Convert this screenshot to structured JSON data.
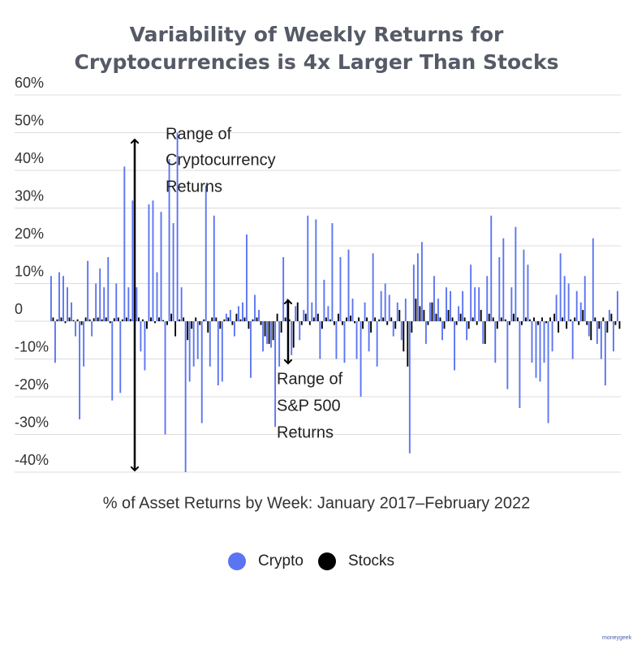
{
  "chart_data": {
    "type": "bar",
    "title": "Variability of Weekly Returns for Cryptocurrencies is 4x Larger Than Stocks",
    "x_label": "% of Asset Returns by Week: January 2017–February 2022",
    "annotations": [
      [
        "Range of",
        "Cryptocurrency",
        "Returns"
      ],
      [
        "Range of",
        "S&P 500",
        "Returns"
      ]
    ],
    "watermark": "moneygeek",
    "ylim": [
      -40,
      60
    ],
    "yticks": [
      {
        "value": -40,
        "label": "-40%"
      },
      {
        "value": -30,
        "label": "-30%"
      },
      {
        "value": -20,
        "label": "-20%"
      },
      {
        "value": -10,
        "label": "-10%"
      },
      0,
      {
        "value": 10,
        "label": "10%"
      },
      {
        "value": 20,
        "label": "20%"
      },
      {
        "value": 30,
        "label": "30%"
      },
      {
        "value": 40,
        "label": "40%"
      },
      {
        "value": 50,
        "label": "50%"
      },
      {
        "value": 60,
        "label": "60%"
      }
    ],
    "grid": true,
    "categories": [
      null,
      null,
      null,
      null,
      null,
      null,
      null,
      null,
      null,
      null,
      null,
      null,
      null,
      null,
      null,
      null,
      null,
      null,
      null,
      null,
      null,
      null,
      null,
      null,
      null,
      null,
      null,
      null,
      null,
      null,
      null,
      null,
      null,
      null,
      null,
      null,
      null,
      null,
      null,
      null,
      null,
      null,
      null,
      null,
      null,
      null,
      null,
      null,
      null,
      null,
      null,
      null,
      null,
      null,
      null,
      null,
      null,
      null,
      null,
      null,
      null,
      null,
      null,
      null,
      null,
      null,
      null,
      null,
      null,
      null,
      null,
      null,
      null,
      null,
      null,
      null,
      null,
      null,
      null,
      null,
      null,
      null,
      null,
      null,
      null,
      null,
      null,
      null,
      null,
      null,
      null,
      null,
      null,
      null,
      null,
      null,
      null,
      null,
      null,
      null,
      null,
      null,
      null,
      null,
      null,
      null,
      null,
      null,
      null,
      null,
      null,
      null,
      null,
      null,
      null,
      null,
      null,
      null,
      null,
      null,
      null,
      null,
      null,
      null,
      null,
      null,
      null,
      null,
      null,
      null,
      null,
      null,
      null,
      null,
      null,
      null,
      null,
      null,
      null,
      null
    ],
    "series": [
      {
        "name": "Crypto",
        "color": "#5b74f2",
        "values": [
          12,
          -11,
          13,
          12,
          9,
          5,
          -4,
          -26,
          -12,
          16,
          -4,
          10,
          14,
          9,
          17,
          -21,
          10,
          -19,
          41,
          9,
          32,
          9,
          -8,
          -13,
          31,
          32,
          13,
          29,
          -30,
          43,
          26,
          50,
          9,
          -40,
          -16,
          -12,
          -10,
          -27,
          36,
          -12,
          28,
          -17,
          -16,
          2,
          3,
          -4,
          4,
          5,
          23,
          -15,
          7,
          3,
          -8,
          -6,
          -7,
          -28,
          -12,
          17,
          6,
          -9,
          4,
          -5,
          3,
          28,
          5,
          27,
          -10,
          11,
          4,
          26,
          -10,
          17,
          -11,
          19,
          6,
          -10,
          -20,
          5,
          -8,
          18,
          -12,
          8,
          10,
          7,
          -4,
          5,
          -5,
          6,
          -35,
          15,
          18,
          21,
          -6,
          5,
          12,
          6,
          -5,
          9,
          8,
          -13,
          4,
          8,
          -5,
          15,
          9,
          9,
          -6,
          12,
          28,
          -11,
          17,
          22,
          -18,
          9,
          25,
          -23,
          19,
          15,
          -11,
          -15,
          -16,
          -11,
          -27,
          -8,
          7,
          18,
          12,
          10,
          -10,
          8,
          5,
          12,
          -4,
          22,
          -6,
          -10,
          -17,
          3,
          -8,
          8
        ]
      },
      {
        "name": "Stocks",
        "color": "#000000",
        "values": [
          1,
          0.5,
          1,
          -0.5,
          1,
          0.3,
          0.5,
          -1,
          1,
          0.5,
          0.8,
          1,
          0.5,
          1,
          -0.5,
          0.8,
          1,
          0.5,
          1,
          0.6,
          0.4,
          1,
          0.5,
          -2,
          1,
          -0.5,
          1,
          0.3,
          -1,
          2,
          -4,
          0.5,
          1,
          -5,
          -2,
          1,
          -1,
          0.5,
          -3,
          1,
          1,
          -2,
          0.5,
          1,
          -1,
          2,
          0.5,
          1,
          -2,
          0.5,
          1,
          -1,
          -4,
          -6,
          -5,
          2,
          -3,
          1,
          0.5,
          -7,
          5,
          -1,
          2,
          -1,
          1,
          2,
          -2,
          1,
          0.5,
          -1,
          2,
          -1,
          1,
          1.5,
          -0.5,
          1,
          -2,
          1,
          -3,
          1,
          0.5,
          1,
          -1,
          1,
          -2,
          3,
          -8,
          -12,
          -3,
          6,
          4,
          3,
          -1,
          5,
          2,
          1,
          -2,
          3,
          1,
          -1,
          2,
          1,
          -2,
          1,
          -1,
          3,
          -6,
          2,
          1,
          -2,
          1,
          0.5,
          -1,
          2,
          1,
          -1,
          1,
          0.5,
          1,
          -1,
          1,
          -0.5,
          1,
          2,
          -3,
          1,
          -2,
          0.5,
          1,
          -1,
          3,
          -1,
          -5,
          1,
          -2,
          1,
          -3,
          2,
          -1,
          -2
        ]
      }
    ]
  }
}
